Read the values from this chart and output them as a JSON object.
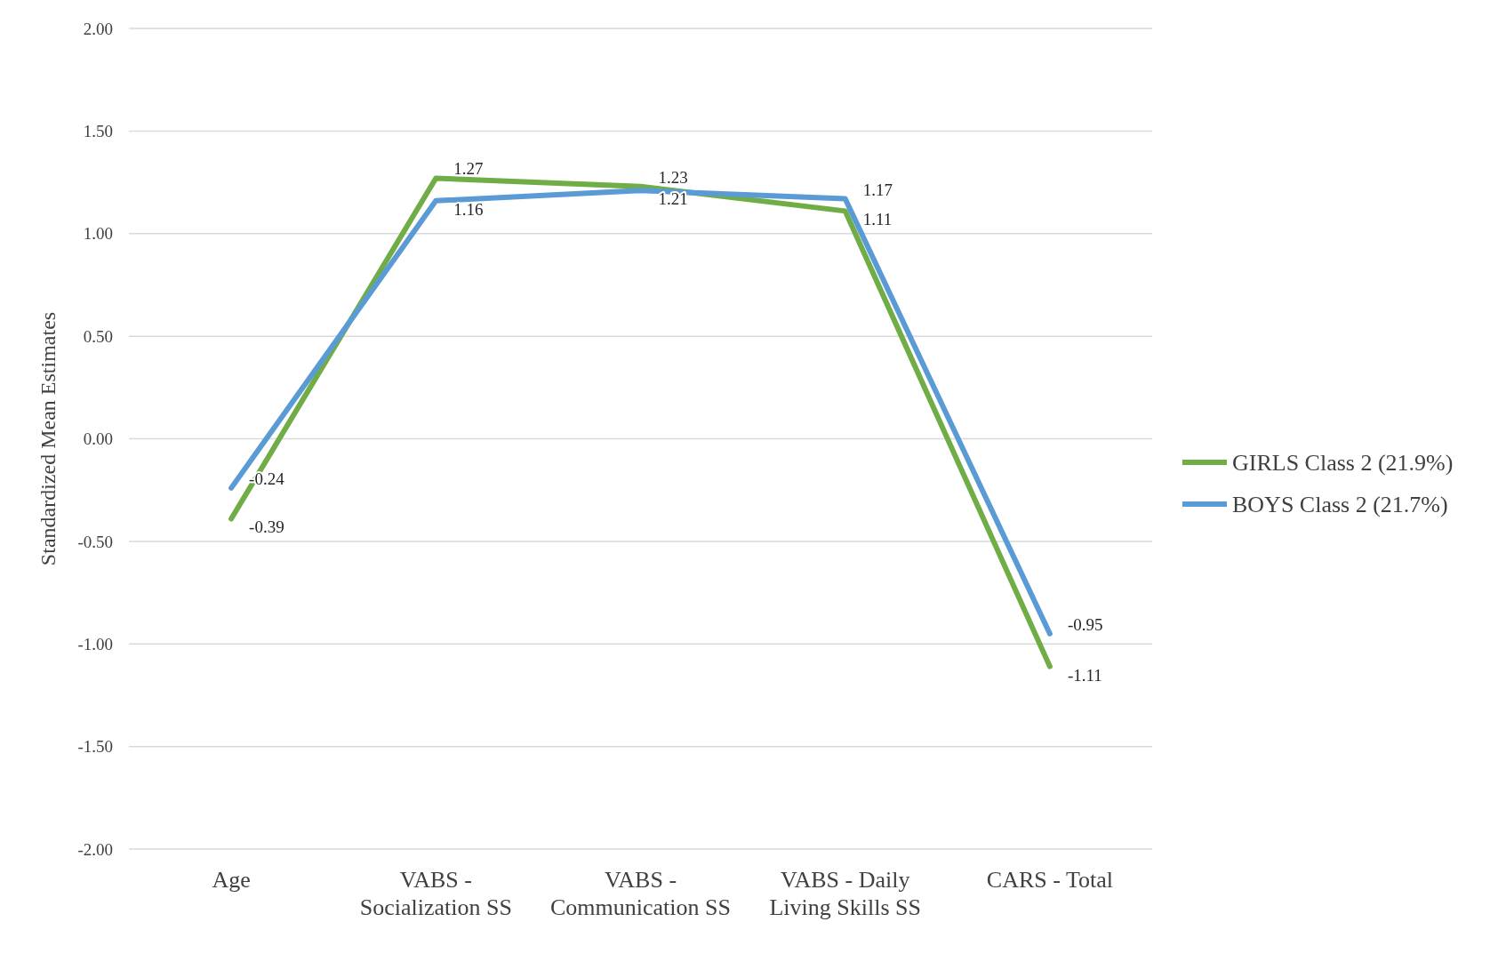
{
  "chart_data": {
    "type": "line",
    "ylabel": "Standardized Mean Estimates",
    "categories": [
      "Age",
      "VABS - Socialization SS",
      "VABS - Communication SS",
      "VABS - Daily Living Skills SS",
      "CARS - Total"
    ],
    "series": [
      {
        "name": "GIRLS Class 2 (21.9%)",
        "color": "#70ad47",
        "values": [
          -0.39,
          1.27,
          1.23,
          1.11,
          -1.11
        ]
      },
      {
        "name": "BOYS Class 2 (21.7%)",
        "color": "#5b9bd5",
        "values": [
          -0.24,
          1.16,
          1.21,
          1.17,
          -0.95
        ]
      }
    ],
    "ylim": [
      -2,
      2
    ],
    "yticks": [
      {
        "value": -2,
        "label": "-2.00"
      },
      {
        "value": -1.5,
        "label": "-1.50"
      },
      {
        "value": -1,
        "label": "-1.00"
      },
      {
        "value": -0.5,
        "label": "-0.50"
      },
      {
        "value": 0,
        "label": "0.00"
      },
      {
        "value": 0.5,
        "label": "0.50"
      },
      {
        "value": 1,
        "label": "1.00"
      },
      {
        "value": 1.5,
        "label": "1.50"
      },
      {
        "value": 2,
        "label": "2.00"
      }
    ],
    "grid": "y",
    "legend": "right",
    "data_labels": true,
    "marker": "none",
    "line_style": "solid"
  }
}
